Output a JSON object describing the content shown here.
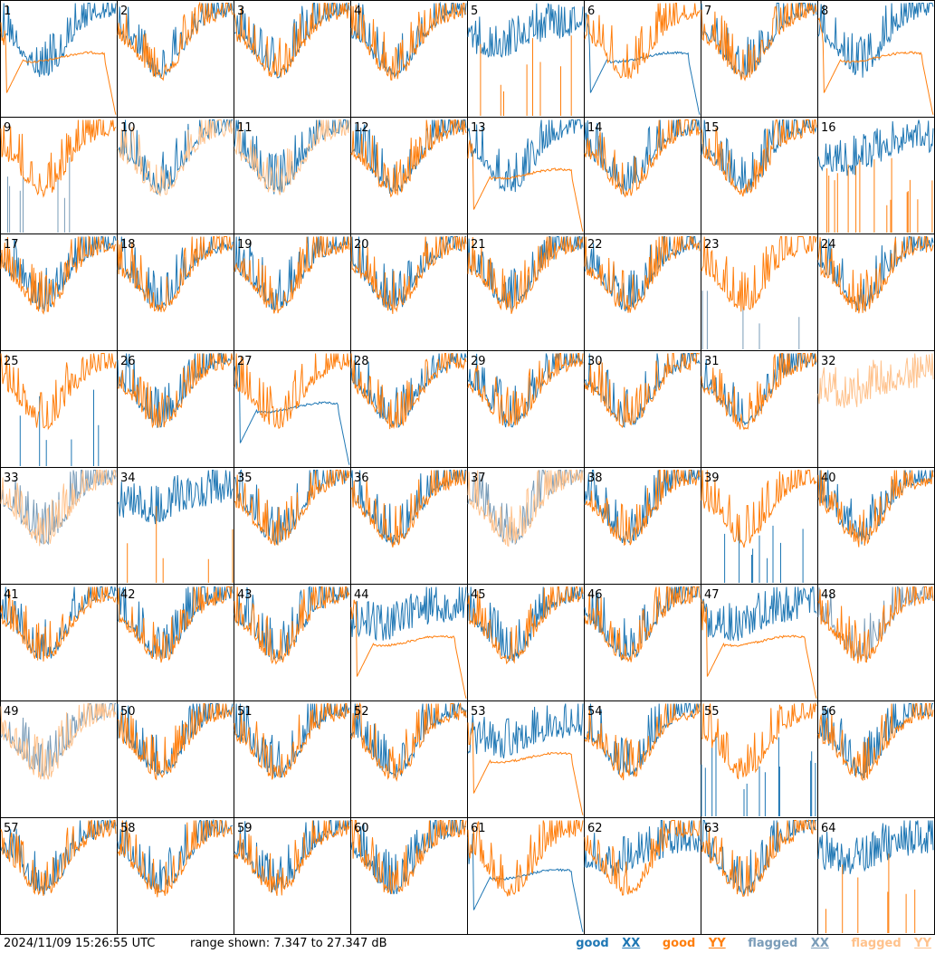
{
  "chart_data": {
    "type": "line",
    "grid": "8x8 small-multiple panels of antenna spectra",
    "timestamp": "2024/11/09 15:26:55 UTC",
    "range_text": "range shown: 7.347 to 27.347 dB",
    "range_db": [
      7.347,
      27.347
    ],
    "legend": [
      {
        "word": "good",
        "pol": "XX",
        "color": "#1f77b4"
      },
      {
        "word": "good",
        "pol": "YY",
        "color": "#ff7f0e"
      },
      {
        "word": "flagged",
        "pol": "XX",
        "color": "#7a9cb8"
      },
      {
        "word": "flagged",
        "pol": "YY",
        "color": "#ffc28c"
      }
    ],
    "colors": {
      "good_xx": "#1f77b4",
      "good_yy": "#ff7f0e",
      "flagged_xx": "#7a9cb8",
      "flagged_yy": "#ffc28c",
      "frame": "#000000"
    },
    "panels": [
      {
        "n": 1,
        "xx": "normal",
        "yy": "droop",
        "status": "good"
      },
      {
        "n": 2,
        "xx": "normal",
        "yy": "normal",
        "status": "good"
      },
      {
        "n": 3,
        "xx": "normal",
        "yy": "normal",
        "status": "good"
      },
      {
        "n": 4,
        "xx": "normal",
        "yy": "normal",
        "status": "good"
      },
      {
        "n": 5,
        "xx": "noisy",
        "yy": "dead",
        "status": "good"
      },
      {
        "n": 6,
        "xx": "droop",
        "yy": "normal",
        "status": "good"
      },
      {
        "n": 7,
        "xx": "normal",
        "yy": "normal",
        "status": "good"
      },
      {
        "n": 8,
        "xx": "normal",
        "yy": "droop",
        "status": "good"
      },
      {
        "n": 9,
        "xx": "dead",
        "yy": "normal",
        "status": "flagged_xx"
      },
      {
        "n": 10,
        "xx": "normal",
        "yy": "normal",
        "status": "flagged_yy"
      },
      {
        "n": 11,
        "xx": "normal",
        "yy": "normal",
        "status": "flagged_yy"
      },
      {
        "n": 12,
        "xx": "normal",
        "yy": "normal",
        "status": "good"
      },
      {
        "n": 13,
        "xx": "normal",
        "yy": "droop",
        "status": "good"
      },
      {
        "n": 14,
        "xx": "normal",
        "yy": "normal",
        "status": "good"
      },
      {
        "n": 15,
        "xx": "normal",
        "yy": "normal",
        "status": "good"
      },
      {
        "n": 16,
        "xx": "noisy",
        "yy": "dead",
        "status": "good"
      },
      {
        "n": 17,
        "xx": "normal",
        "yy": "normal",
        "status": "good"
      },
      {
        "n": 18,
        "xx": "normal",
        "yy": "normal",
        "status": "good"
      },
      {
        "n": 19,
        "xx": "normal",
        "yy": "normal",
        "status": "good"
      },
      {
        "n": 20,
        "xx": "normal",
        "yy": "normal",
        "status": "good"
      },
      {
        "n": 21,
        "xx": "normal",
        "yy": "normal",
        "status": "good"
      },
      {
        "n": 22,
        "xx": "normal",
        "yy": "normal",
        "status": "good"
      },
      {
        "n": 23,
        "xx": "dead",
        "yy": "normal",
        "status": "flagged_xx"
      },
      {
        "n": 24,
        "xx": "normal",
        "yy": "normal",
        "status": "good"
      },
      {
        "n": 25,
        "xx": "dead",
        "yy": "normal",
        "status": "good"
      },
      {
        "n": 26,
        "xx": "normal",
        "yy": "normal",
        "status": "good"
      },
      {
        "n": 27,
        "xx": "droop",
        "yy": "normal",
        "status": "good"
      },
      {
        "n": 28,
        "xx": "normal",
        "yy": "normal",
        "status": "good"
      },
      {
        "n": 29,
        "xx": "normal",
        "yy": "normal",
        "status": "good"
      },
      {
        "n": 30,
        "xx": "normal",
        "yy": "normal",
        "status": "good"
      },
      {
        "n": 31,
        "xx": "normal",
        "yy": "normal",
        "status": "good"
      },
      {
        "n": 32,
        "xx": "none",
        "yy": "noisy",
        "status": "flagged_yy"
      },
      {
        "n": 33,
        "xx": "normal",
        "yy": "normal",
        "status": "flagged_both"
      },
      {
        "n": 34,
        "xx": "noisy",
        "yy": "dead",
        "status": "good"
      },
      {
        "n": 35,
        "xx": "normal",
        "yy": "normal",
        "status": "good"
      },
      {
        "n": 36,
        "xx": "normal",
        "yy": "normal",
        "status": "good"
      },
      {
        "n": 37,
        "xx": "normal",
        "yy": "normal",
        "status": "flagged_both"
      },
      {
        "n": 38,
        "xx": "normal",
        "yy": "normal",
        "status": "good"
      },
      {
        "n": 39,
        "xx": "dead",
        "yy": "normal",
        "status": "good"
      },
      {
        "n": 40,
        "xx": "normal",
        "yy": "normal",
        "status": "good"
      },
      {
        "n": 41,
        "xx": "normal",
        "yy": "normal",
        "status": "good"
      },
      {
        "n": 42,
        "xx": "normal",
        "yy": "normal",
        "status": "good"
      },
      {
        "n": 43,
        "xx": "normal",
        "yy": "normal",
        "status": "good"
      },
      {
        "n": 44,
        "xx": "noisy",
        "yy": "droop",
        "status": "good"
      },
      {
        "n": 45,
        "xx": "normal",
        "yy": "normal",
        "status": "good"
      },
      {
        "n": 46,
        "xx": "normal",
        "yy": "normal",
        "status": "good"
      },
      {
        "n": 47,
        "xx": "noisy",
        "yy": "droop",
        "status": "good"
      },
      {
        "n": 48,
        "xx": "normal",
        "yy": "normal",
        "status": "flagged_xx"
      },
      {
        "n": 49,
        "xx": "normal",
        "yy": "normal",
        "status": "flagged_both"
      },
      {
        "n": 50,
        "xx": "normal",
        "yy": "normal",
        "status": "good"
      },
      {
        "n": 51,
        "xx": "normal",
        "yy": "normal",
        "status": "good"
      },
      {
        "n": 52,
        "xx": "normal",
        "yy": "normal",
        "status": "good"
      },
      {
        "n": 53,
        "xx": "noisy",
        "yy": "droop",
        "status": "good"
      },
      {
        "n": 54,
        "xx": "normal",
        "yy": "normal",
        "status": "good"
      },
      {
        "n": 55,
        "xx": "dead",
        "yy": "normal",
        "status": "good"
      },
      {
        "n": 56,
        "xx": "normal",
        "yy": "normal",
        "status": "good"
      },
      {
        "n": 57,
        "xx": "normal",
        "yy": "normal",
        "status": "good"
      },
      {
        "n": 58,
        "xx": "normal",
        "yy": "normal",
        "status": "good"
      },
      {
        "n": 59,
        "xx": "normal",
        "yy": "normal",
        "status": "good"
      },
      {
        "n": 60,
        "xx": "normal",
        "yy": "normal",
        "status": "good"
      },
      {
        "n": 61,
        "xx": "droop",
        "yy": "normal",
        "status": "good"
      },
      {
        "n": 62,
        "xx": "noisy",
        "yy": "normal",
        "status": "good"
      },
      {
        "n": 63,
        "xx": "normal",
        "yy": "normal",
        "status": "good"
      },
      {
        "n": 64,
        "xx": "noisy",
        "yy": "dead",
        "status": "good"
      }
    ]
  }
}
